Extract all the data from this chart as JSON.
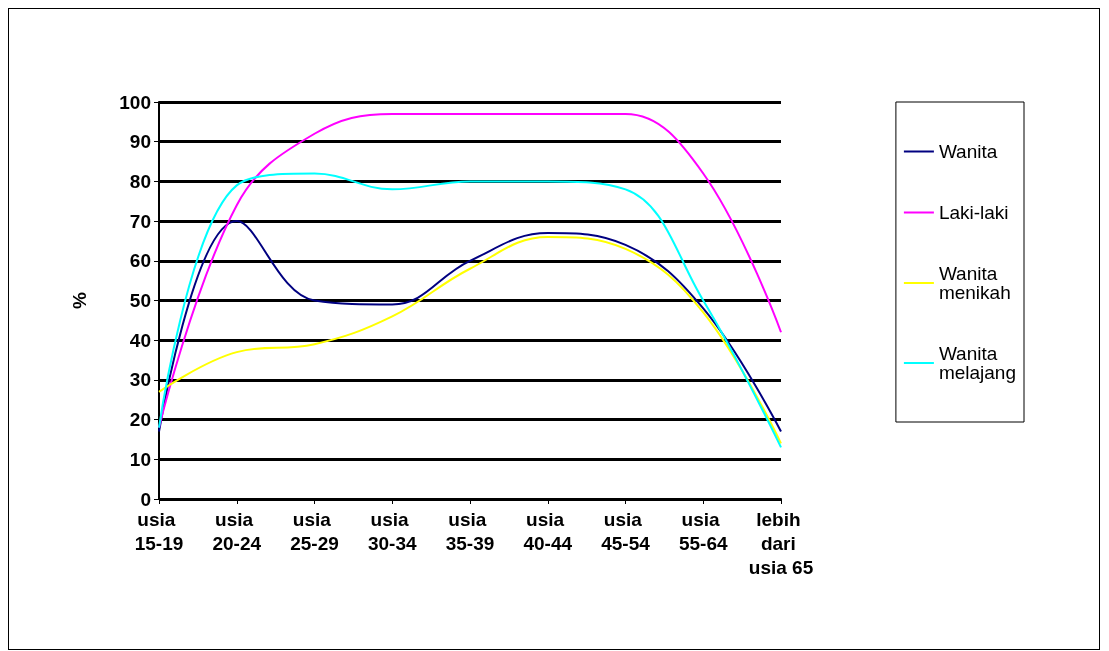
{
  "chart_data": {
    "type": "line",
    "ylabel": "%",
    "categories": [
      "usia 15-19",
      "usia 20-24",
      "usia 25-29",
      "usia 30-34",
      "usia 35-39",
      "usia 40-44",
      "usia 45-54",
      "usia 55-64",
      "lebih dari usia 65"
    ],
    "series": [
      {
        "name": "Wanita",
        "color": "#000080",
        "values": [
          17,
          70,
          50,
          49,
          60,
          67,
          64,
          48,
          17
        ]
      },
      {
        "name": "Laki-laki",
        "color": "#ff00ff",
        "values": [
          18,
          74,
          92,
          97,
          97,
          97,
          97,
          82,
          42
        ]
      },
      {
        "name": "Wanita menikah",
        "color": "#ffff00",
        "values": [
          27,
          37,
          39,
          46,
          58,
          66,
          63,
          47,
          14
        ]
      },
      {
        "name": "Wanita melajang",
        "color": "#00ffff",
        "values": [
          18,
          79,
          82,
          78,
          80,
          80,
          78,
          50,
          13
        ]
      }
    ],
    "ylim": [
      0,
      100
    ],
    "yticks": [
      0,
      10,
      20,
      30,
      40,
      50,
      60,
      70,
      80,
      90,
      100
    ],
    "grid": "y",
    "legend": "right",
    "marker": "none",
    "line_style": "solid"
  }
}
